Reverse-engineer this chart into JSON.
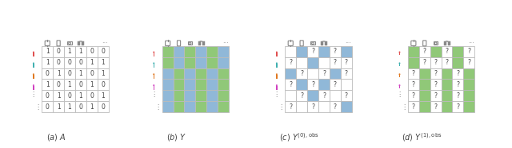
{
  "fig_width": 6.4,
  "fig_height": 1.86,
  "dpi": 100,
  "bg_color": "#ffffff",
  "blue_color": "#90b8d8",
  "green_color": "#90c878",
  "white_color": "#ffffff",
  "grid_line_color": "#bbbbbb",
  "text_color": "#444444",
  "panel_a_matrix": [
    [
      1,
      0,
      1,
      1,
      0,
      0
    ],
    [
      1,
      0,
      0,
      0,
      1,
      1
    ],
    [
      0,
      1,
      0,
      1,
      0,
      1
    ],
    [
      1,
      0,
      1,
      0,
      1,
      0
    ],
    [
      0,
      1,
      0,
      1,
      0,
      1
    ],
    [
      0,
      1,
      1,
      0,
      1,
      0
    ]
  ],
  "panel_b_colors": [
    [
      "G",
      "B",
      "G",
      "B",
      "G",
      "B"
    ],
    [
      "G",
      "B",
      "G",
      "B",
      "G",
      "B"
    ],
    [
      "B",
      "G",
      "B",
      "G",
      "B",
      "G"
    ],
    [
      "B",
      "G",
      "B",
      "G",
      "B",
      "G"
    ],
    [
      "B",
      "G",
      "B",
      "G",
      "B",
      "G"
    ],
    [
      "B",
      "G",
      "B",
      "G",
      "B",
      "G"
    ]
  ],
  "panel_c_pattern": [
    [
      "W",
      "B",
      "?",
      "B",
      "?",
      "B"
    ],
    [
      "?",
      "W",
      "B",
      "W",
      "?",
      "?"
    ],
    [
      "B",
      "?",
      "W",
      "?",
      "B",
      "?"
    ],
    [
      "?",
      "B",
      "?",
      "B",
      "?",
      "W"
    ],
    [
      "W",
      "?",
      "B",
      "?",
      "W",
      "?"
    ],
    [
      "?",
      "W",
      "?",
      "W",
      "?",
      "B"
    ]
  ],
  "panel_d_pattern": [
    [
      "G",
      "?",
      "G",
      "?",
      "G",
      "?"
    ],
    [
      "G",
      "?",
      "?",
      "?",
      "G",
      "?"
    ],
    [
      "?",
      "G",
      "?",
      "G",
      "?",
      "G"
    ],
    [
      "?",
      "G",
      "?",
      "G",
      "?",
      "G"
    ],
    [
      "?",
      "G",
      "?",
      "G",
      "?",
      "G"
    ],
    [
      "?",
      "G",
      "?",
      "G",
      "?",
      "G"
    ]
  ],
  "person_colors": [
    "#e05050",
    "#40b0b0",
    "#e07820",
    "#d040c0"
  ],
  "n_rows": 6,
  "n_cols": 6,
  "dots_color": "#888888",
  "cell_fontsize": 5.0,
  "q_fontsize": 5.5,
  "caption_fontsize": 7.0
}
